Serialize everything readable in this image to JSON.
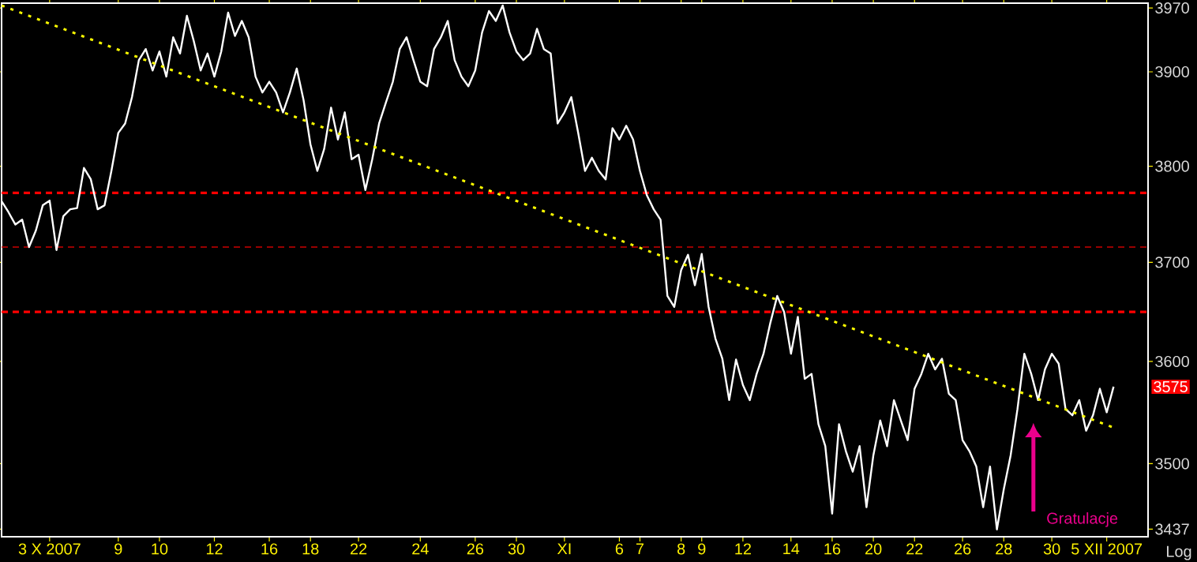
{
  "chart_data": {
    "type": "line",
    "log": "y",
    "ylim": [
      3430,
      3975
    ],
    "categories": [
      null,
      null,
      null,
      null,
      null,
      null,
      null,
      "3 X 2007",
      null,
      null,
      null,
      null,
      null,
      null,
      null,
      null,
      null,
      "9",
      null,
      null,
      null,
      null,
      null,
      "10",
      null,
      null,
      null,
      null,
      null,
      null,
      null,
      "12",
      null,
      null,
      null,
      null,
      null,
      null,
      null,
      "16",
      null,
      null,
      null,
      null,
      null,
      "18",
      null,
      null,
      null,
      null,
      null,
      null,
      "22",
      null,
      null,
      null,
      null,
      null,
      null,
      null,
      null,
      "24",
      null,
      null,
      null,
      null,
      null,
      null,
      null,
      "26",
      null,
      null,
      null,
      null,
      null,
      "30",
      null,
      null,
      null,
      null,
      null,
      null,
      "XI",
      null,
      null,
      null,
      null,
      null,
      null,
      null,
      "6",
      null,
      null,
      "7",
      null,
      null,
      null,
      null,
      null,
      "8",
      null,
      null,
      "9",
      null,
      null,
      null,
      null,
      null,
      "12",
      null,
      null,
      null,
      null,
      null,
      null,
      "14",
      null,
      null,
      null,
      null,
      null,
      "16",
      null,
      null,
      null,
      null,
      null,
      "20",
      null,
      null,
      null,
      null,
      null,
      "22",
      null,
      null,
      null,
      null,
      null,
      null,
      "26",
      null,
      null,
      null,
      null,
      null,
      "28",
      null,
      null,
      null,
      null,
      null,
      null,
      "30",
      null,
      null,
      null,
      null,
      null,
      null,
      null,
      "5 XII 2007",
      null
    ],
    "yticks": [
      3437,
      3500,
      3600,
      3700,
      3800,
      3900,
      3970
    ],
    "series": [
      {
        "color": "#ffffff",
        "values": [
          3763,
          3752,
          3739,
          3744,
          3716,
          3733,
          3759,
          3764,
          3713,
          3748,
          3755,
          3756,
          3798,
          3786,
          3755,
          3759,
          3795,
          3835,
          3845,
          3873,
          3913,
          3925,
          3902,
          3922,
          3895,
          3938,
          3920,
          3961,
          3934,
          3902,
          3920,
          3895,
          3922,
          3965,
          3939,
          3956,
          3938,
          3895,
          3878,
          3890,
          3878,
          3857,
          3878,
          3904,
          3870,
          3823,
          3795,
          3818,
          3862,
          3828,
          3857,
          3807,
          3812,
          3775,
          3807,
          3845,
          3868,
          3890,
          3925,
          3938,
          3913,
          3890,
          3885,
          3925,
          3938,
          3956,
          3913,
          3895,
          3885,
          3902,
          3943,
          3966,
          3956,
          3973,
          3943,
          3922,
          3913,
          3920,
          3947,
          3925,
          3920,
          3845,
          3857,
          3873,
          3835,
          3795,
          3809,
          3795,
          3786,
          3840,
          3828,
          3843,
          3828,
          3795,
          3770,
          3755,
          3744,
          3666,
          3655,
          3692,
          3708,
          3677,
          3709,
          3655,
          3623,
          3603,
          3562,
          3602,
          3577,
          3562,
          3588,
          3608,
          3639,
          3666,
          3650,
          3608,
          3645,
          3583,
          3588,
          3538,
          3517,
          3452,
          3538,
          3512,
          3492,
          3517,
          3458,
          3508,
          3542,
          3517,
          3562,
          3542,
          3523,
          3573,
          3588,
          3608,
          3592,
          3603,
          3568,
          3562,
          3523,
          3512,
          3497,
          3458,
          3497,
          3437,
          3475,
          3508,
          3553,
          3608,
          3588,
          3562,
          3592,
          3608,
          3598,
          3553,
          3547,
          3562,
          3532,
          3547,
          3573,
          3550,
          3575
        ]
      },
      {
        "color": "#ffff00",
        "line_style": "dotted",
        "values": [
          3973,
          null,
          null,
          null,
          null,
          null,
          null,
          null,
          null,
          null,
          null,
          null,
          null,
          null,
          null,
          null,
          null,
          null,
          null,
          null,
          null,
          null,
          null,
          null,
          null,
          null,
          null,
          null,
          null,
          null,
          null,
          null,
          null,
          null,
          null,
          null,
          null,
          null,
          null,
          null,
          null,
          null,
          null,
          null,
          null,
          null,
          null,
          null,
          null,
          null,
          null,
          null,
          null,
          null,
          null,
          null,
          null,
          null,
          null,
          null,
          null,
          null,
          null,
          null,
          null,
          null,
          null,
          null,
          null,
          null,
          null,
          null,
          null,
          null,
          null,
          null,
          null,
          null,
          null,
          null,
          null,
          null,
          null,
          null,
          null,
          null,
          null,
          null,
          null,
          null,
          null,
          null,
          null,
          null,
          null,
          null,
          null,
          null,
          null,
          null,
          null,
          null,
          null,
          null,
          null,
          null,
          null,
          null,
          null,
          null,
          null,
          null,
          null,
          null,
          null,
          null,
          null,
          null,
          null,
          null,
          null,
          null,
          null,
          null,
          null,
          null,
          null,
          null,
          null,
          null,
          null,
          null,
          null,
          null,
          null,
          null,
          null,
          null,
          null,
          null,
          null,
          null,
          null,
          null,
          null,
          null,
          null,
          null,
          null,
          null,
          null,
          null,
          null,
          null,
          null,
          null,
          null,
          null,
          null,
          null,
          null,
          null,
          3535
        ]
      }
    ],
    "ref_lines": [
      {
        "axis": "y",
        "value": 3772,
        "color": "#ff0000",
        "line_style": "dashed"
      },
      {
        "axis": "y",
        "value": 3716,
        "color": "#cc0000",
        "line_style": "dashed"
      },
      {
        "axis": "y",
        "value": 3650,
        "color": "#ff0000",
        "line_style": "dashed"
      }
    ],
    "annotations": [
      "Gratulacje",
      "3575",
      "Log"
    ]
  }
}
